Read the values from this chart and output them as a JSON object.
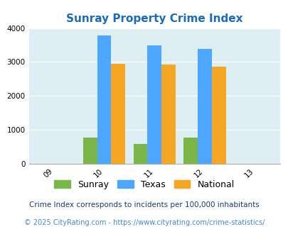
{
  "title": "Sunray Property Crime Index",
  "title_color": "#1a6bbf",
  "x_positions": [
    1,
    2,
    3,
    4,
    5
  ],
  "x_labels": [
    "09",
    "10",
    "11",
    "12",
    "13"
  ],
  "bar_positions": [
    2,
    3,
    4
  ],
  "sunray": [
    775,
    580,
    775
  ],
  "texas": [
    3780,
    3490,
    3380
  ],
  "national": [
    2950,
    2930,
    2860
  ],
  "sunray_color": "#7ab648",
  "texas_color": "#4da6ff",
  "national_color": "#f5a623",
  "bg_color": "#ddeef4",
  "ylim": [
    0,
    4000
  ],
  "yticks": [
    0,
    1000,
    2000,
    3000,
    4000
  ],
  "bar_width": 0.28,
  "legend_labels": [
    "Sunray",
    "Texas",
    "National"
  ],
  "footnote1": "Crime Index corresponds to incidents per 100,000 inhabitants",
  "footnote2": "© 2025 CityRating.com - https://www.cityrating.com/crime-statistics/",
  "footnote1_color": "#1a3a6b",
  "footnote2_color": "#4488cc"
}
